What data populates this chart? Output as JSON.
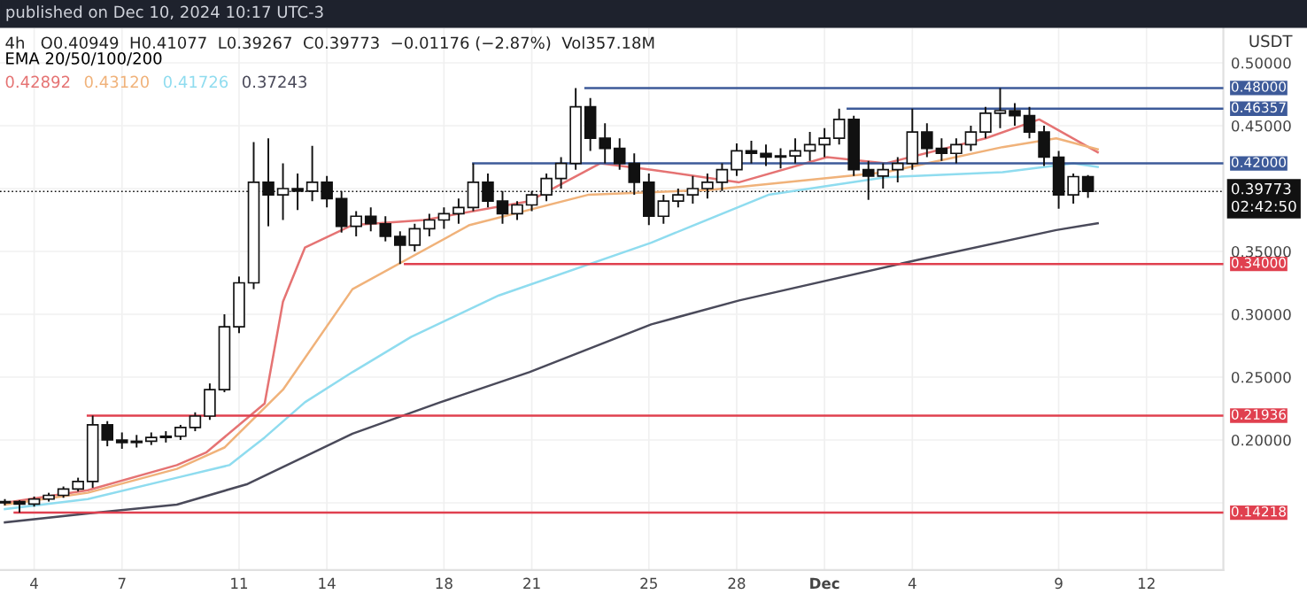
{
  "chart_data": {
    "type": "candlestick",
    "title": "published on Dec 10, 2024 10:17 UTC-3",
    "subtitle": "4h   O0.40949  H0.41077  L0.39267  C0.39773  −0.01176 (−2.87%)  Vol357.18M",
    "ylabel": "USDT",
    "legend_title": "EMA 20/50/100/200",
    "legend": "top left",
    "grid": true,
    "xlim": [
      "2024-11-02T20:00",
      "2024-12-14T15:00"
    ],
    "ylim": [
      0.0965,
      0.5275
    ],
    "yticks": [
      {
        "value": 0.15,
        "label": null
      },
      {
        "value": 0.2,
        "label": "0.20000"
      },
      {
        "value": 0.25,
        "label": "0.25000"
      },
      {
        "value": 0.3,
        "label": "0.30000"
      },
      {
        "value": 0.35,
        "label": "0.35000"
      },
      {
        "value": 0.4,
        "label": null
      },
      {
        "value": 0.45,
        "label": "0.45000"
      },
      {
        "value": 0.5,
        "label": "0.50000"
      }
    ],
    "xticks": [
      {
        "value": "2024-11-04",
        "label": "4"
      },
      {
        "value": "2024-11-07",
        "label": "7"
      },
      {
        "value": "2024-11-11",
        "label": "11"
      },
      {
        "value": "2024-11-14",
        "label": "14"
      },
      {
        "value": "2024-11-18",
        "label": "18"
      },
      {
        "value": "2024-11-21",
        "label": "21"
      },
      {
        "value": "2024-11-25",
        "label": "25"
      },
      {
        "value": "2024-11-28",
        "label": "28"
      },
      {
        "value": "2024-12-01",
        "label": "Dec"
      },
      {
        "value": "2024-12-04",
        "label": "4"
      },
      {
        "value": "2024-12-09",
        "label": "9"
      },
      {
        "value": "2024-12-12",
        "label": "12"
      }
    ],
    "x": [
      "2024-11-03T00:00",
      "2024-11-03T12:00",
      "2024-11-04T00:00",
      "2024-11-04T12:00",
      "2024-11-05T00:00",
      "2024-11-05T12:00",
      "2024-11-06T00:00",
      "2024-11-06T12:00",
      "2024-11-07T00:00",
      "2024-11-07T12:00",
      "2024-11-08T00:00",
      "2024-11-08T12:00",
      "2024-11-09T00:00",
      "2024-11-09T12:00",
      "2024-11-10T00:00",
      "2024-11-10T12:00",
      "2024-11-11T00:00",
      "2024-11-11T12:00",
      "2024-11-12T00:00",
      "2024-11-12T12:00",
      "2024-11-13T00:00",
      "2024-11-13T12:00",
      "2024-11-14T00:00",
      "2024-11-14T12:00",
      "2024-11-15T00:00",
      "2024-11-15T12:00",
      "2024-11-16T00:00",
      "2024-11-16T12:00",
      "2024-11-17T00:00",
      "2024-11-17T12:00",
      "2024-11-18T00:00",
      "2024-11-18T12:00",
      "2024-11-19T00:00",
      "2024-11-19T12:00",
      "2024-11-20T00:00",
      "2024-11-20T12:00",
      "2024-11-21T00:00",
      "2024-11-21T12:00",
      "2024-11-22T00:00",
      "2024-11-22T12:00",
      "2024-11-23T00:00",
      "2024-11-23T12:00",
      "2024-11-24T00:00",
      "2024-11-24T12:00",
      "2024-11-25T00:00",
      "2024-11-25T12:00",
      "2024-11-26T00:00",
      "2024-11-26T12:00",
      "2024-11-27T00:00",
      "2024-11-27T12:00",
      "2024-11-28T00:00",
      "2024-11-28T12:00",
      "2024-11-29T00:00",
      "2024-11-29T12:00",
      "2024-11-30T00:00",
      "2024-11-30T12:00",
      "2024-12-01T00:00",
      "2024-12-01T12:00",
      "2024-12-02T00:00",
      "2024-12-02T12:00",
      "2024-12-03T00:00",
      "2024-12-03T12:00",
      "2024-12-04T00:00",
      "2024-12-04T12:00",
      "2024-12-05T00:00",
      "2024-12-05T12:00",
      "2024-12-06T00:00",
      "2024-12-06T12:00",
      "2024-12-07T00:00",
      "2024-12-07T12:00",
      "2024-12-08T00:00",
      "2024-12-08T12:00",
      "2024-12-09T00:00",
      "2024-12-09T12:00",
      "2024-12-10T00:00"
    ],
    "ohlc": [
      [
        0.15,
        0.153,
        0.148,
        0.151
      ],
      [
        0.151,
        0.152,
        0.1422,
        0.149
      ],
      [
        0.149,
        0.155,
        0.147,
        0.153
      ],
      [
        0.153,
        0.158,
        0.151,
        0.156
      ],
      [
        0.156,
        0.163,
        0.154,
        0.161
      ],
      [
        0.161,
        0.17,
        0.159,
        0.167
      ],
      [
        0.167,
        0.2194,
        0.162,
        0.212
      ],
      [
        0.212,
        0.215,
        0.195,
        0.2
      ],
      [
        0.2,
        0.206,
        0.193,
        0.198
      ],
      [
        0.198,
        0.204,
        0.194,
        0.199
      ],
      [
        0.199,
        0.206,
        0.196,
        0.202
      ],
      [
        0.202,
        0.207,
        0.198,
        0.203
      ],
      [
        0.203,
        0.212,
        0.2,
        0.21
      ],
      [
        0.21,
        0.222,
        0.207,
        0.219
      ],
      [
        0.219,
        0.245,
        0.216,
        0.24
      ],
      [
        0.24,
        0.3,
        0.238,
        0.29
      ],
      [
        0.29,
        0.33,
        0.285,
        0.325
      ],
      [
        0.325,
        0.437,
        0.32,
        0.405
      ],
      [
        0.405,
        0.44,
        0.37,
        0.395
      ],
      [
        0.395,
        0.42,
        0.375,
        0.4
      ],
      [
        0.4,
        0.412,
        0.383,
        0.398
      ],
      [
        0.398,
        0.434,
        0.39,
        0.405
      ],
      [
        0.405,
        0.41,
        0.385,
        0.392
      ],
      [
        0.392,
        0.398,
        0.365,
        0.37
      ],
      [
        0.37,
        0.382,
        0.362,
        0.378
      ],
      [
        0.378,
        0.385,
        0.366,
        0.372
      ],
      [
        0.372,
        0.378,
        0.358,
        0.362
      ],
      [
        0.362,
        0.366,
        0.34,
        0.355
      ],
      [
        0.355,
        0.372,
        0.35,
        0.368
      ],
      [
        0.368,
        0.38,
        0.362,
        0.375
      ],
      [
        0.375,
        0.385,
        0.368,
        0.38
      ],
      [
        0.38,
        0.392,
        0.372,
        0.385
      ],
      [
        0.385,
        0.42,
        0.382,
        0.405
      ],
      [
        0.405,
        0.412,
        0.385,
        0.39
      ],
      [
        0.39,
        0.398,
        0.372,
        0.38
      ],
      [
        0.38,
        0.39,
        0.375,
        0.387
      ],
      [
        0.387,
        0.398,
        0.382,
        0.395
      ],
      [
        0.395,
        0.412,
        0.39,
        0.408
      ],
      [
        0.408,
        0.425,
        0.4,
        0.42
      ],
      [
        0.42,
        0.48,
        0.415,
        0.465
      ],
      [
        0.465,
        0.472,
        0.43,
        0.44
      ],
      [
        0.44,
        0.452,
        0.42,
        0.432
      ],
      [
        0.432,
        0.44,
        0.415,
        0.42
      ],
      [
        0.42,
        0.428,
        0.395,
        0.405
      ],
      [
        0.405,
        0.412,
        0.371,
        0.378
      ],
      [
        0.378,
        0.395,
        0.372,
        0.39
      ],
      [
        0.39,
        0.4,
        0.385,
        0.395
      ],
      [
        0.395,
        0.41,
        0.388,
        0.4
      ],
      [
        0.4,
        0.412,
        0.392,
        0.405
      ],
      [
        0.405,
        0.42,
        0.398,
        0.415
      ],
      [
        0.415,
        0.436,
        0.41,
        0.43
      ],
      [
        0.43,
        0.438,
        0.42,
        0.428
      ],
      [
        0.428,
        0.435,
        0.418,
        0.425
      ],
      [
        0.425,
        0.432,
        0.416,
        0.426
      ],
      [
        0.426,
        0.44,
        0.42,
        0.43
      ],
      [
        0.43,
        0.445,
        0.422,
        0.435
      ],
      [
        0.435,
        0.448,
        0.425,
        0.44
      ],
      [
        0.44,
        0.4636,
        0.435,
        0.455
      ],
      [
        0.455,
        0.458,
        0.41,
        0.415
      ],
      [
        0.415,
        0.422,
        0.391,
        0.41
      ],
      [
        0.41,
        0.42,
        0.4,
        0.415
      ],
      [
        0.415,
        0.425,
        0.405,
        0.42
      ],
      [
        0.42,
        0.4636,
        0.415,
        0.445
      ],
      [
        0.445,
        0.452,
        0.425,
        0.432
      ],
      [
        0.432,
        0.44,
        0.422,
        0.428
      ],
      [
        0.428,
        0.44,
        0.42,
        0.435
      ],
      [
        0.435,
        0.45,
        0.43,
        0.445
      ],
      [
        0.445,
        0.465,
        0.44,
        0.46
      ],
      [
        0.46,
        0.48,
        0.448,
        0.462
      ],
      [
        0.462,
        0.468,
        0.45,
        0.458
      ],
      [
        0.458,
        0.465,
        0.44,
        0.445
      ],
      [
        0.445,
        0.45,
        0.418,
        0.425
      ],
      [
        0.425,
        0.43,
        0.384,
        0.395
      ],
      [
        0.395,
        0.412,
        0.388,
        0.40949
      ],
      [
        0.40949,
        0.41077,
        0.39267,
        0.39773
      ]
    ],
    "series": [
      {
        "type": "line",
        "name": "0.42892",
        "color": "#e57373",
        "x": [
          "2024-11-03T00:00",
          "2024-11-05T20:00",
          "2024-11-08T21:00",
          "2024-11-09T21:00",
          "2024-11-11T21:00",
          "2024-11-12T12:00",
          "2024-11-13T06:00",
          "2024-11-14T21:00",
          "2024-11-17T08:00",
          "2024-11-20T22:00",
          "2024-11-23T08:00",
          "2024-11-25T02:00",
          "2024-11-28T02:00",
          "2024-12-01T02:00",
          "2024-12-03T02:00",
          "2024-12-06T12:00",
          "2024-12-08T08:00",
          "2024-12-10T08:00"
        ],
        "values": [
          0.15,
          0.16,
          0.18,
          0.19,
          0.229,
          0.31,
          0.353,
          0.371,
          0.375,
          0.39,
          0.42,
          0.415,
          0.405,
          0.425,
          0.42,
          0.44,
          0.455,
          0.42892
        ]
      },
      {
        "type": "line",
        "name": "0.43120",
        "color": "#f0b27a",
        "x": [
          "2024-11-03T00:00",
          "2024-11-05T20:00",
          "2024-11-08T21:00",
          "2024-11-10T12:00",
          "2024-11-12T12:00",
          "2024-11-14T21:00",
          "2024-11-18T21:00",
          "2024-11-22T22:00",
          "2024-11-27T02:00",
          "2024-12-03T02:00",
          "2024-12-07T02:00",
          "2024-12-08T22:00",
          "2024-12-10T08:00"
        ],
        "values": [
          0.1486,
          0.158,
          0.177,
          0.194,
          0.24,
          0.32,
          0.371,
          0.395,
          0.399,
          0.413,
          0.433,
          0.44,
          0.4312
        ]
      },
      {
        "type": "line",
        "name": "0.41726",
        "color": "#8fdcef",
        "x": [
          "2024-11-03T00:00",
          "2024-11-05T20:00",
          "2024-11-08T21:00",
          "2024-11-10T16:00",
          "2024-11-11T21:00",
          "2024-11-13T06:00",
          "2024-11-14T21:00",
          "2024-11-16T21:00",
          "2024-11-19T21:00",
          "2024-11-25T02:00",
          "2024-11-29T02:00",
          "2024-12-03T02:00",
          "2024-12-07T02:00",
          "2024-12-09T12:00",
          "2024-12-10T08:00"
        ],
        "values": [
          0.145,
          0.153,
          0.17,
          0.18,
          0.202,
          0.23,
          0.254,
          0.282,
          0.315,
          0.357,
          0.395,
          0.409,
          0.413,
          0.42,
          0.41726
        ]
      },
      {
        "type": "line",
        "name": "0.37243",
        "color": "#4a4a5a",
        "x": [
          "2024-11-03T00:00",
          "2024-11-05T20:00",
          "2024-11-08T21:00",
          "2024-11-11T07:00",
          "2024-11-14T21:00",
          "2024-11-17T21:00",
          "2024-11-20T22:00",
          "2024-11-25T02:00",
          "2024-11-28T02:00",
          "2024-12-04T03:00",
          "2024-12-08T22:00",
          "2024-12-10T08:00"
        ],
        "values": [
          0.1345,
          0.1415,
          0.1486,
          0.165,
          0.205,
          0.23,
          0.254,
          0.292,
          0.311,
          0.343,
          0.367,
          0.37243
        ]
      },
      {
        "type": "line",
        "color": "#3d5a99",
        "x": [
          "2024-11-22T20:00",
          "2024-12-14T15:00"
        ],
        "values": [
          0.48,
          0.48
        ],
        "value_labels": [
          null,
          "0.48000"
        ]
      },
      {
        "type": "line",
        "color": "#3d5a99",
        "x": [
          "2024-12-01T19:00",
          "2024-12-14T15:00"
        ],
        "values": [
          0.46357,
          0.46357
        ],
        "value_labels": [
          null,
          "0.46357"
        ]
      },
      {
        "type": "line",
        "color": "#3d5a99",
        "x": [
          "2024-11-19T00:00",
          "2024-12-14T15:00"
        ],
        "values": [
          0.42,
          0.42
        ],
        "value_labels": [
          null,
          "0.42000"
        ]
      },
      {
        "type": "line",
        "color": "#e0404f",
        "x": [
          "2024-11-16T16:00",
          "2024-12-14T15:00"
        ],
        "values": [
          0.34,
          0.34
        ],
        "value_labels": [
          null,
          "0.34000"
        ]
      },
      {
        "type": "line",
        "color": "#e0404f",
        "x": [
          "2024-11-05T20:00",
          "2024-12-14T15:00"
        ],
        "values": [
          0.21936,
          0.21936
        ],
        "value_labels": [
          null,
          "0.21936"
        ]
      },
      {
        "type": "line",
        "color": "#e0404f",
        "x": [
          "2024-11-03T08:00",
          "2024-12-14T15:00"
        ],
        "values": [
          0.14218,
          0.14218
        ],
        "value_labels": [
          null,
          "0.14218"
        ]
      }
    ],
    "ref_lines": [
      {
        "axis": "y",
        "value": 0.39773,
        "label": "0.39773\n02:42:50",
        "color": "#111111",
        "line_style": "dotted"
      }
    ]
  }
}
